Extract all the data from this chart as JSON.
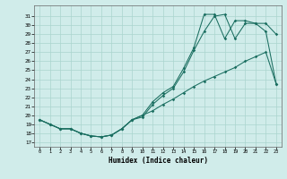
{
  "xlabel": "Humidex (Indice chaleur)",
  "bg_color": "#d0ecea",
  "grid_color": "#aad4ce",
  "line_color": "#1a6e60",
  "xlim_min": -0.5,
  "xlim_max": 23.5,
  "ylim_min": 16.5,
  "ylim_max": 32.2,
  "xticks": [
    0,
    1,
    2,
    3,
    4,
    5,
    6,
    7,
    8,
    9,
    10,
    11,
    12,
    13,
    14,
    15,
    16,
    17,
    18,
    19,
    20,
    21,
    22,
    23
  ],
  "yticks": [
    17,
    18,
    19,
    20,
    21,
    22,
    23,
    24,
    25,
    26,
    27,
    28,
    29,
    30,
    31
  ],
  "curve_a_x": [
    0,
    1,
    2,
    3,
    4,
    5,
    6,
    7,
    8,
    9,
    10,
    11,
    12,
    13,
    14,
    15,
    16,
    17,
    18,
    19,
    20,
    21,
    22,
    23
  ],
  "curve_a_y": [
    19.5,
    19.0,
    18.5,
    18.5,
    18.0,
    17.7,
    17.6,
    17.8,
    18.5,
    19.5,
    20.0,
    21.5,
    22.5,
    23.2,
    25.2,
    27.5,
    31.2,
    31.2,
    28.5,
    30.5,
    30.5,
    30.2,
    29.3,
    23.5
  ],
  "curve_b_x": [
    0,
    1,
    2,
    3,
    4,
    5,
    6,
    7,
    8,
    9,
    10,
    11,
    12,
    13,
    14,
    15,
    16,
    17,
    18,
    19,
    20,
    21,
    22,
    23
  ],
  "curve_b_y": [
    19.5,
    19.0,
    18.5,
    18.5,
    18.0,
    17.7,
    17.6,
    17.8,
    18.5,
    19.5,
    19.8,
    21.2,
    22.2,
    23.0,
    24.8,
    27.2,
    29.3,
    31.0,
    31.2,
    28.5,
    30.2,
    30.2,
    30.2,
    29.0
  ],
  "curve_c_x": [
    0,
    1,
    2,
    3,
    4,
    5,
    6,
    7,
    8,
    9,
    10,
    11,
    12,
    13,
    14,
    15,
    16,
    17,
    18,
    19,
    20,
    21,
    22,
    23
  ],
  "curve_c_y": [
    19.5,
    19.0,
    18.5,
    18.5,
    18.0,
    17.7,
    17.6,
    17.8,
    18.5,
    19.5,
    20.0,
    20.5,
    21.2,
    21.8,
    22.5,
    23.2,
    23.8,
    24.3,
    24.8,
    25.3,
    26.0,
    26.5,
    27.0,
    23.5
  ]
}
